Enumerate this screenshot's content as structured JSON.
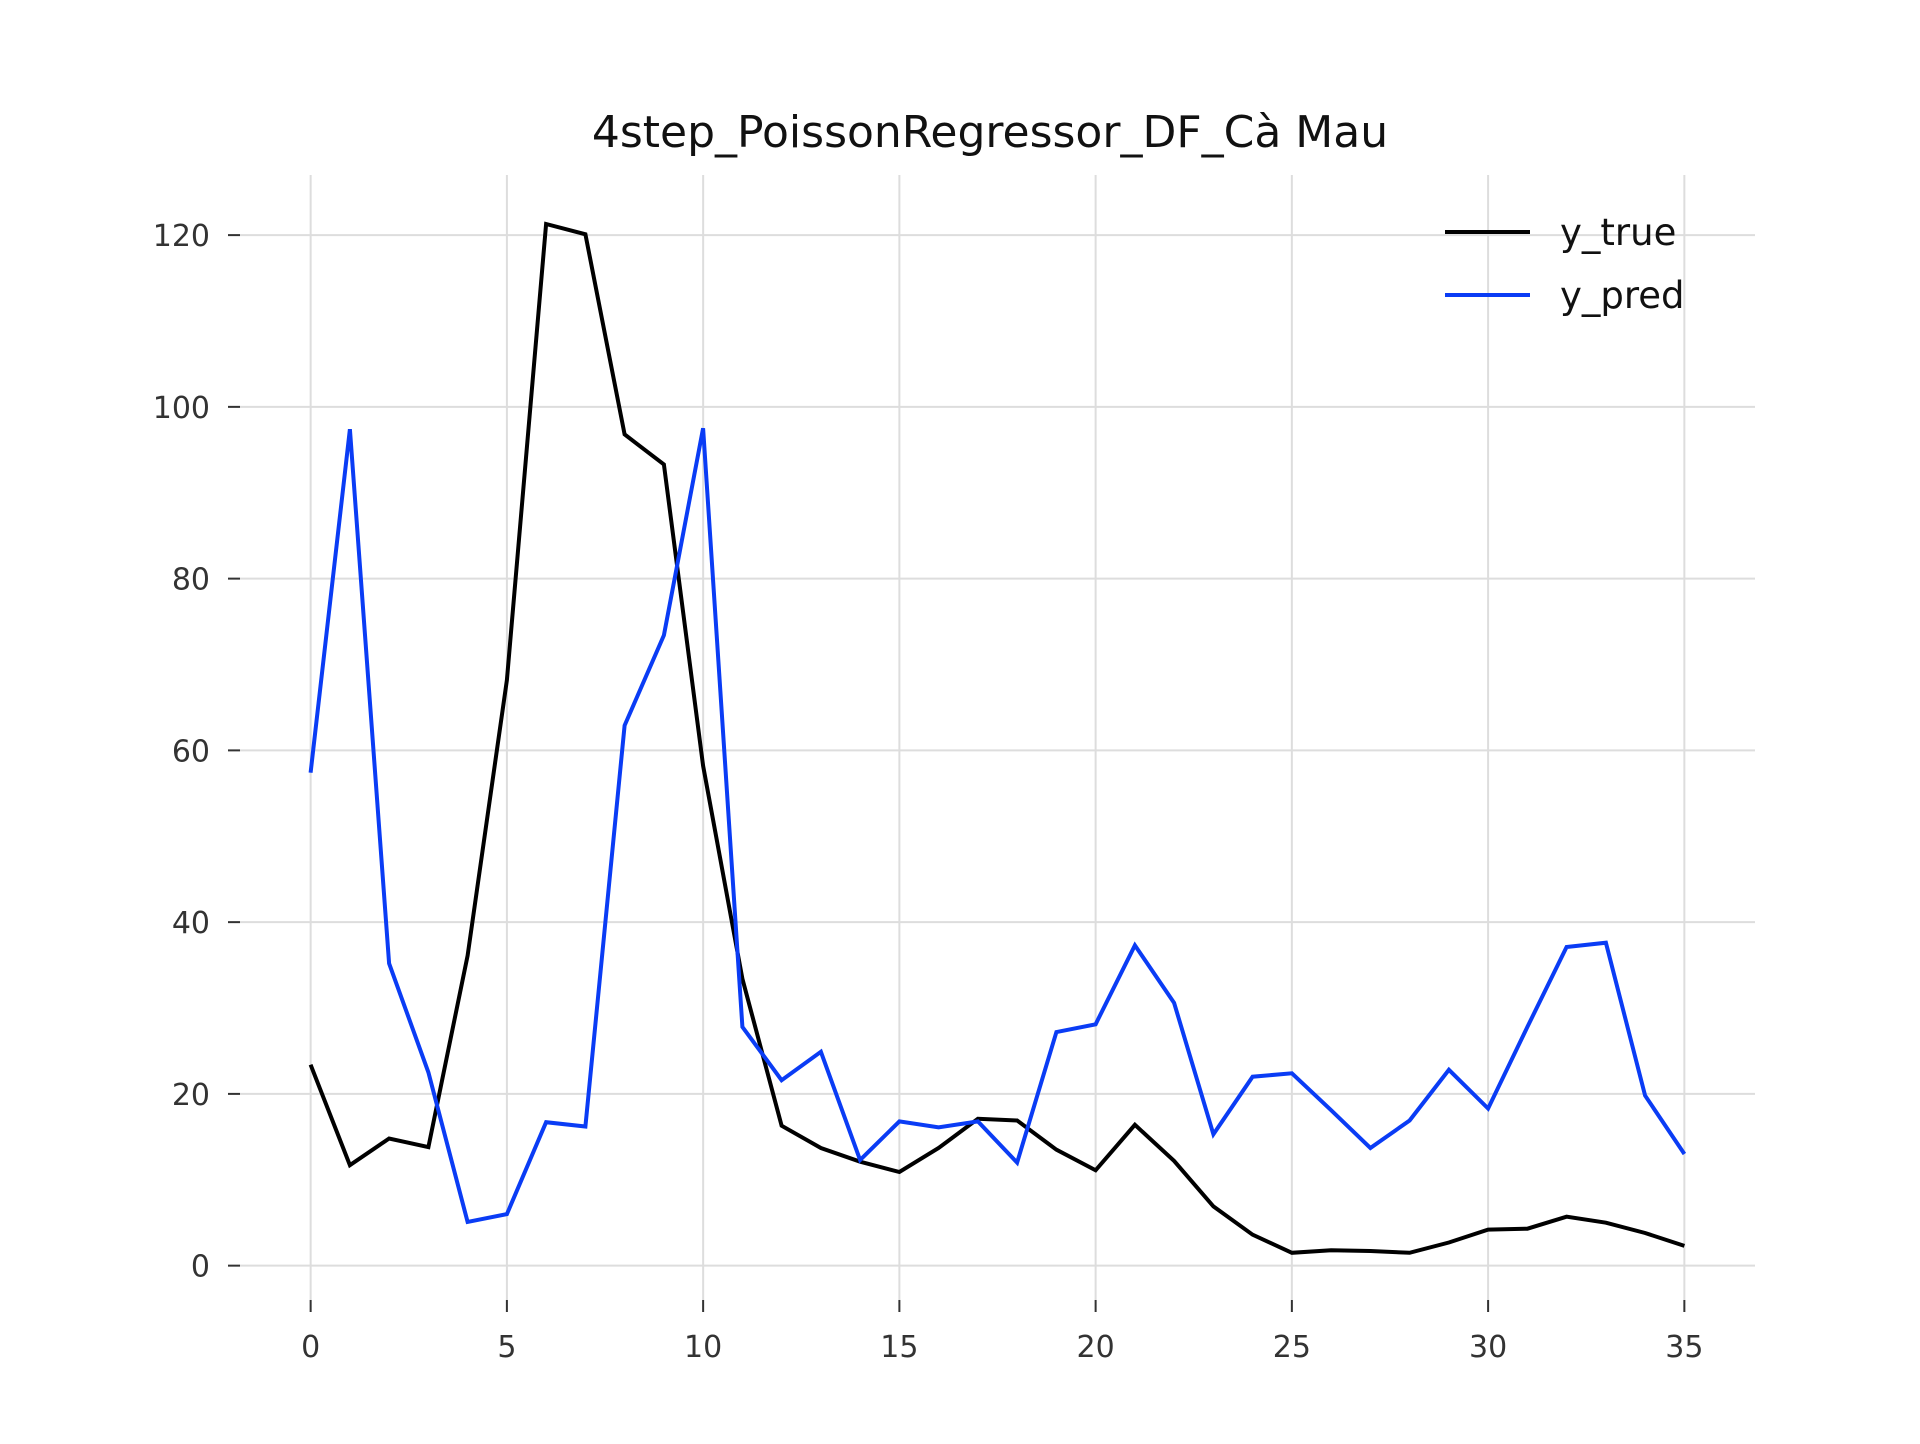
{
  "chart_data": {
    "type": "line",
    "title": "4step_PoissonRegressor_DF_Cà Mau",
    "xlabel": "",
    "ylabel": "",
    "xlim": [
      -1.8,
      36.8
    ],
    "ylim": [
      -4,
      127
    ],
    "x_ticks": [
      0,
      5,
      10,
      15,
      20,
      25,
      30,
      35
    ],
    "y_ticks": [
      0,
      20,
      40,
      60,
      80,
      100,
      120
    ],
    "grid": true,
    "legend_position": "top-right",
    "x": [
      0,
      1,
      2,
      3,
      4,
      5,
      6,
      7,
      8,
      9,
      10,
      11,
      12,
      13,
      14,
      15,
      16,
      17,
      18,
      19,
      20,
      21,
      22,
      23,
      24,
      25,
      26,
      27,
      28,
      29,
      30,
      31,
      32,
      33,
      34,
      35
    ],
    "series": [
      {
        "name": "y_true",
        "color": "#000000",
        "values": [
          23.4,
          11.7,
          14.8,
          13.8,
          36.1,
          68.2,
          121.3,
          120.1,
          96.8,
          93.3,
          58.2,
          33.4,
          16.3,
          13.7,
          12.1,
          10.9,
          13.7,
          17.1,
          16.9,
          13.5,
          11.1,
          16.4,
          12.2,
          6.9,
          3.6,
          1.5,
          1.8,
          1.7,
          1.5,
          2.7,
          4.2,
          4.3,
          5.7,
          5.0,
          3.8,
          2.3
        ]
      },
      {
        "name": "y_pred",
        "color": "#0a3cf5",
        "values": [
          57.4,
          97.4,
          35.2,
          22.5,
          5.1,
          6.0,
          16.7,
          16.2,
          62.9,
          73.4,
          97.5,
          27.8,
          21.6,
          24.9,
          12.3,
          16.8,
          16.1,
          16.8,
          12.0,
          27.2,
          28.1,
          37.3,
          30.6,
          15.3,
          22.0,
          22.4,
          18.1,
          13.7,
          16.9,
          22.8,
          18.3,
          27.8,
          37.1,
          37.6,
          19.8,
          13.0
        ]
      }
    ]
  }
}
